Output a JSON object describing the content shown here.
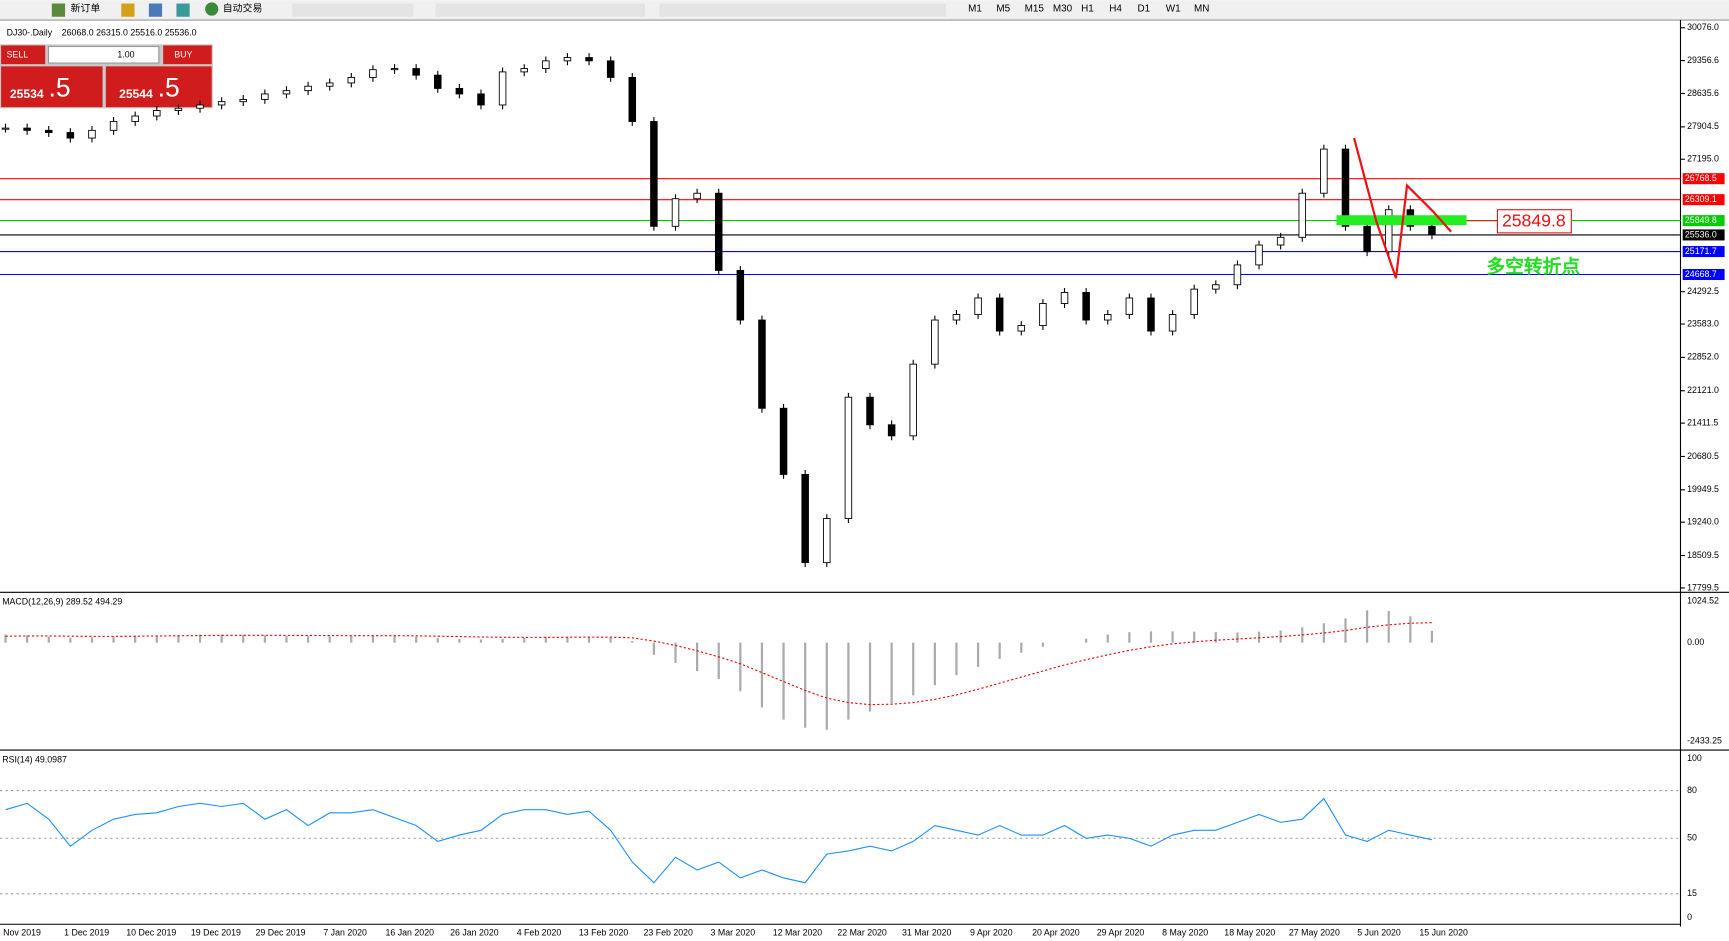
{
  "toolbar": {
    "new_order": "新订单",
    "auto_trading": "自动交易",
    "timeframes": [
      "M1",
      "M5",
      "M15",
      "M30",
      "H1",
      "H4",
      "D1",
      "W1",
      "MN"
    ]
  },
  "trade_panel": {
    "sell": "SELL",
    "buy": "BUY",
    "lots": "1.00",
    "bid_main": "25534",
    "bid_fraction": ".5",
    "ask_main": "25544",
    "ask_fraction": ".5"
  },
  "chart_data": {
    "type": "candlestick",
    "title": "DJ30-.Daily",
    "ohlc_info": [
      "26068.0",
      "26315.0",
      "25516.0",
      "25536.0"
    ],
    "ylim": [
      17799.5,
      30076.0
    ],
    "yticks": [
      {
        "value": 30076.0,
        "label": "30076.0"
      },
      {
        "value": 29356.6,
        "label": "29356.6"
      },
      {
        "value": 28635.6,
        "label": "28635.6"
      },
      {
        "value": 27904.5,
        "label": "27904.5"
      },
      {
        "value": 27195.0,
        "label": "27195.0"
      },
      {
        "value": 24292.5,
        "label": "24292.5"
      },
      {
        "value": 23583.0,
        "label": "23583.0"
      },
      {
        "value": 22852.0,
        "label": "22852.0"
      },
      {
        "value": 22121.0,
        "label": "22121.0"
      },
      {
        "value": 21411.5,
        "label": "21411.5"
      },
      {
        "value": 20680.5,
        "label": "20680.5"
      },
      {
        "value": 19949.5,
        "label": "19949.5"
      },
      {
        "value": 19240.0,
        "label": "19240.0"
      },
      {
        "value": 18509.5,
        "label": "18509.5"
      },
      {
        "value": 17799.5,
        "label": "17799.5"
      }
    ],
    "levels": [
      {
        "value": 26768.5,
        "label": "26768.5",
        "color": "#ff0000"
      },
      {
        "value": 26309.1,
        "label": "26309.1",
        "color": "#ff0000"
      },
      {
        "value": 25849.8,
        "label": "25849.8",
        "color": "#00cc00"
      },
      {
        "value": 25536,
        "label": "25536.0",
        "color": "#000000"
      },
      {
        "value": 25171.7,
        "label": "25171.7",
        "color": "#0000ff"
      },
      {
        "value": 24668.7,
        "label": "24668.7",
        "color": "#0000ff"
      }
    ],
    "closes": [
      27877,
      27828,
      27780,
      27659,
      27828,
      28022,
      28142,
      28263,
      28312,
      28384,
      28457,
      28505,
      28626,
      28698,
      28795,
      28867,
      28988,
      29158,
      29182,
      29037,
      28747,
      28626,
      28384,
      29109,
      29182,
      29351,
      29423,
      29351,
      28988,
      28022,
      25725,
      26330,
      26450,
      24759,
      23671,
      21737,
      20287,
      18354,
      19320,
      21979,
      21375,
      21133,
      22704,
      23671,
      23792,
      24154,
      23429,
      23550,
      24033,
      24275,
      23671,
      23792,
      24154,
      23429,
      23792,
      24348,
      24444,
      24879,
      25315,
      25484,
      26450,
      27417,
      25725,
      25169,
      26088,
      25725,
      25536
    ],
    "date_labels": [
      "Nov 2019",
      "1 Dec 2019",
      "10 Dec 2019",
      "19 Dec 2019",
      "29 Dec 2019",
      "7 Jan 2020",
      "16 Jan 2020",
      "26 Jan 2020",
      "4 Feb 2020",
      "13 Feb 2020",
      "23 Feb 2020",
      "3 Mar 2020",
      "12 Mar 2020",
      "22 Mar 2020",
      "31 Mar 2020",
      "9 Apr 2020",
      "20 Apr 2020",
      "29 Apr 2020",
      "8 May 2020",
      "18 May 2020",
      "27 May 2020",
      "5 Jun 2020",
      "15 Jun 2020"
    ],
    "annotation_value": "25849.8",
    "annotation_text": "多空转折点",
    "macd": {
      "title": "MACD(12,26,9) 289.52 494.29",
      "ylim": [
        -2433.25,
        1024.52
      ],
      "yticks": [
        {
          "value": 1024.52,
          "label": "1024.52"
        },
        {
          "value": 0,
          "label": "0.00"
        },
        {
          "value": -2433.25,
          "label": "-2433.25"
        }
      ],
      "main": [
        200,
        180,
        150,
        120,
        130,
        150,
        170,
        180,
        190,
        200,
        200,
        190,
        180,
        170,
        160,
        160,
        170,
        180,
        170,
        150,
        110,
        90,
        80,
        100,
        120,
        140,
        150,
        150,
        120,
        40,
        -300,
        -500,
        -700,
        -900,
        -1200,
        -1600,
        -1900,
        -2100,
        -2150,
        -1900,
        -1700,
        -1500,
        -1300,
        -1050,
        -800,
        -600,
        -400,
        -250,
        -100,
        0,
        100,
        200,
        260,
        280,
        280,
        270,
        260,
        250,
        270,
        300,
        380,
        480,
        600,
        800,
        780,
        650,
        290
      ],
      "signal": [
        160,
        165,
        165,
        160,
        155,
        155,
        160,
        165,
        170,
        175,
        180,
        182,
        182,
        180,
        178,
        175,
        173,
        173,
        172,
        168,
        160,
        150,
        140,
        133,
        130,
        131,
        134,
        137,
        135,
        120,
        40,
        -70,
        -200,
        -350,
        -520,
        -740,
        -960,
        -1180,
        -1370,
        -1480,
        -1530,
        -1520,
        -1480,
        -1400,
        -1290,
        -1150,
        -1000,
        -850,
        -700,
        -550,
        -420,
        -300,
        -190,
        -100,
        -30,
        20,
        60,
        90,
        120,
        150,
        190,
        240,
        300,
        380,
        440,
        480,
        494
      ]
    },
    "rsi": {
      "title": "RSI(14) 49.0987",
      "ylim": [
        0,
        100
      ],
      "yticks": [
        100,
        80,
        50,
        15,
        0
      ],
      "values": [
        68,
        72,
        62,
        45,
        55,
        62,
        65,
        66,
        70,
        72,
        70,
        72,
        62,
        68,
        58,
        66,
        66,
        68,
        63,
        58,
        48,
        52,
        55,
        65,
        68,
        68,
        65,
        67,
        55,
        35,
        22,
        38,
        30,
        35,
        25,
        30,
        25,
        22,
        40,
        42,
        45,
        42,
        48,
        58,
        55,
        52,
        58,
        52,
        52,
        58,
        50,
        52,
        50,
        45,
        52,
        55,
        55,
        60,
        65,
        60,
        62,
        75,
        52,
        48,
        55,
        52,
        49.1
      ]
    }
  }
}
